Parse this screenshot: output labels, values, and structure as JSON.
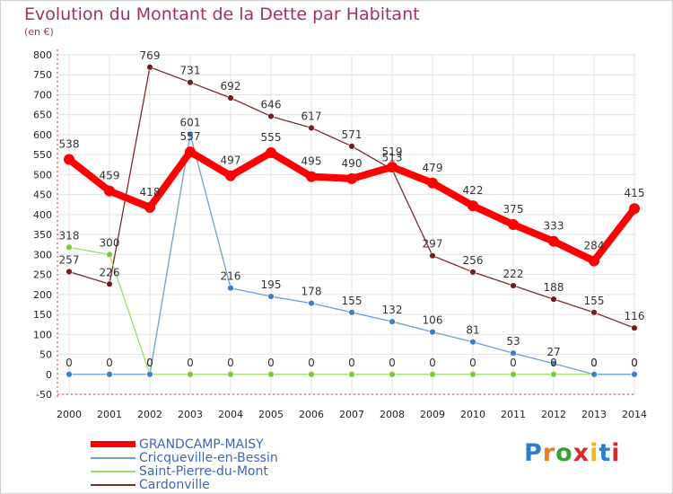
{
  "title": "Evolution du Montant de la Dette par Habitant",
  "subtitle": "(en €)",
  "logo": {
    "text": "Proxiti",
    "letter_colors": [
      "#2d7fc9",
      "#f07d1a",
      "#3aa13a",
      "#d62b2b",
      "#f2b51a",
      "#2d7fc9",
      "#d62b2b"
    ]
  },
  "chart_data": {
    "type": "line",
    "title": "Evolution du Montant de la Dette par Habitant",
    "subtitle": "(en €)",
    "xlabel": "",
    "ylabel": "",
    "ylim": [
      -50,
      800
    ],
    "ytick_step": 50,
    "grid": true,
    "legend": "bottom-left",
    "x": [
      "2000",
      "2001",
      "2002",
      "2003",
      "2004",
      "2005",
      "2006",
      "2007",
      "2008",
      "2009",
      "2010",
      "2011",
      "2012",
      "2013",
      "2014"
    ],
    "y_ticks": [
      "-50",
      "0",
      "50",
      "100",
      "150",
      "200",
      "250",
      "300",
      "350",
      "400",
      "450",
      "500",
      "550",
      "600",
      "650",
      "700",
      "750",
      "800"
    ],
    "series": [
      {
        "name": "GRANDCAMP-MAISY",
        "color": "#ff0000",
        "point_color": "#ff0000",
        "emphasis": true,
        "values": [
          538,
          459,
          418,
          557,
          497,
          555,
          495,
          490,
          519,
          479,
          422,
          375,
          333,
          284,
          415
        ],
        "labels": [
          "538",
          "459",
          "418",
          "557",
          "497",
          "555",
          "495",
          "490",
          "519",
          "479",
          "422",
          "375",
          "333",
          "284",
          "415"
        ]
      },
      {
        "name": "Cricqueville-en-Bessin",
        "color": "#6a9fd8",
        "point_color": "#3f7fc6",
        "emphasis": false,
        "values": [
          0,
          0,
          0,
          601,
          216,
          195,
          178,
          155,
          132,
          106,
          81,
          53,
          27,
          0,
          0
        ],
        "labels": [
          "0",
          "0",
          "0",
          "601",
          "216",
          "195",
          "178",
          "155",
          "132",
          "106",
          "81",
          "53",
          "27",
          "0",
          "0"
        ]
      },
      {
        "name": "Saint-Pierre-du-Mont",
        "color": "#99dd66",
        "point_color": "#77cc33",
        "emphasis": false,
        "values": [
          318,
          300,
          0,
          0,
          0,
          0,
          0,
          0,
          0,
          0,
          0,
          0,
          0,
          0,
          0
        ],
        "labels": [
          "318",
          "300",
          "0",
          "0",
          "0",
          "0",
          "0",
          "0",
          "0",
          "0",
          "0",
          "0",
          "0",
          "0",
          "0"
        ]
      },
      {
        "name": "Cardonville",
        "color": "#7a2a2a",
        "point_color": "#6e1f1f",
        "emphasis": false,
        "values": [
          257,
          226,
          769,
          731,
          692,
          646,
          617,
          571,
          513,
          297,
          256,
          222,
          188,
          155,
          116
        ],
        "labels": [
          "257",
          "226",
          "769",
          "731",
          "692",
          "646",
          "617",
          "571",
          "513",
          "297",
          "256",
          "222",
          "188",
          "155",
          "116"
        ]
      }
    ]
  }
}
